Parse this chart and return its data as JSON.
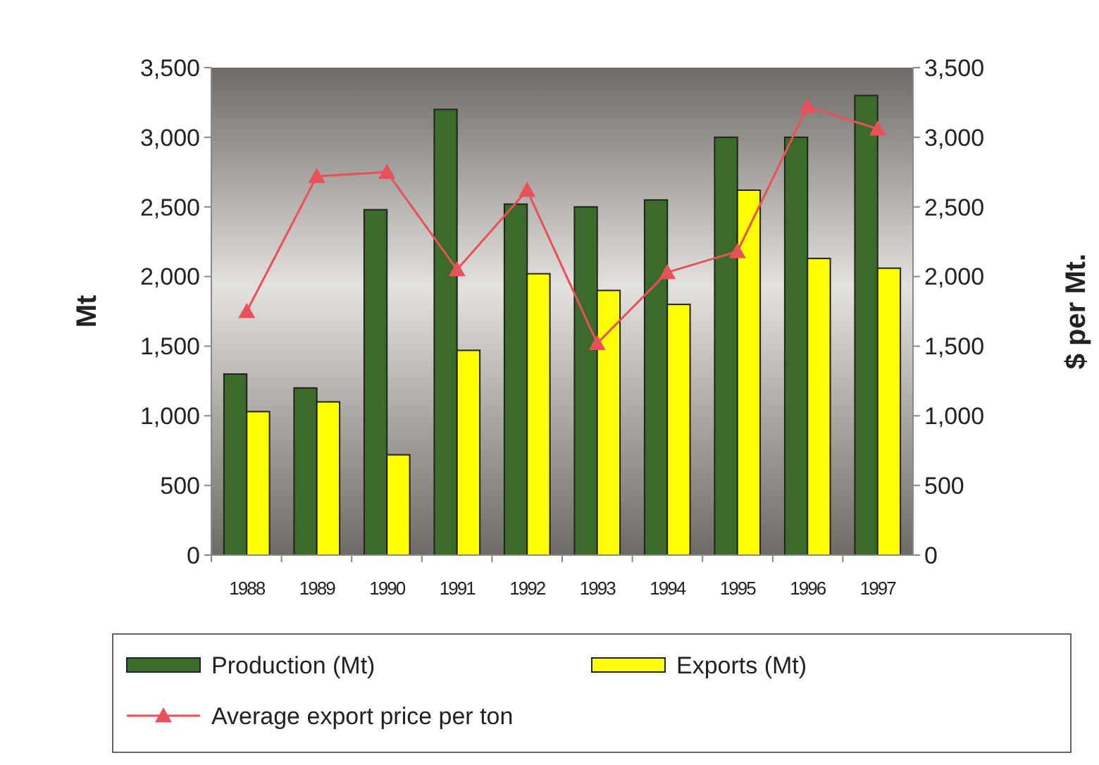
{
  "chart_data": {
    "type": "bar",
    "categories": [
      "1988",
      "1989",
      "1990",
      "1991",
      "1992",
      "1993",
      "1994",
      "1995",
      "1996",
      "1997"
    ],
    "series": [
      {
        "name": "Production (Mt)",
        "color": "#3a6b2a",
        "values": [
          1300,
          1200,
          2480,
          3200,
          2520,
          2500,
          2550,
          3000,
          3000,
          3300
        ]
      },
      {
        "name": "Exports (Mt)",
        "color": "#ffff00",
        "values": [
          1030,
          1100,
          720,
          1470,
          2020,
          1900,
          1800,
          2620,
          2130,
          2060
        ]
      },
      {
        "name": "Average export price per ton",
        "type": "line",
        "axis": "y2",
        "color": "#e8505a",
        "marker": "triangle",
        "values": [
          1750,
          2720,
          2750,
          2050,
          2620,
          1520,
          2030,
          2180,
          3220,
          3060
        ]
      }
    ],
    "ylabel": "Mt",
    "y2label": "$ per Mt.",
    "ylim": [
      0,
      3500
    ],
    "yticks": [
      {
        "value": 0,
        "label": "0"
      },
      {
        "value": 500,
        "label": "500"
      },
      {
        "value": 1000,
        "label": "1,000"
      },
      {
        "value": 1500,
        "label": "1,500"
      },
      {
        "value": 2000,
        "label": "2,000"
      },
      {
        "value": 2500,
        "label": "2,500"
      },
      {
        "value": 3000,
        "label": "3,000"
      },
      {
        "value": 3500,
        "label": "3,500"
      }
    ],
    "y2lim": [
      0,
      3500
    ],
    "y2ticks": [
      {
        "value": 0,
        "label": "0"
      },
      {
        "value": 500,
        "label": "500"
      },
      {
        "value": 1000,
        "label": "1,000"
      },
      {
        "value": 1500,
        "label": "1,500"
      },
      {
        "value": 2000,
        "label": "2,000"
      },
      {
        "value": 2500,
        "label": "2,500"
      },
      {
        "value": 3000,
        "label": "3,000"
      },
      {
        "value": 3500,
        "label": "3,500"
      }
    ],
    "grid": false,
    "legend": "bottom"
  }
}
